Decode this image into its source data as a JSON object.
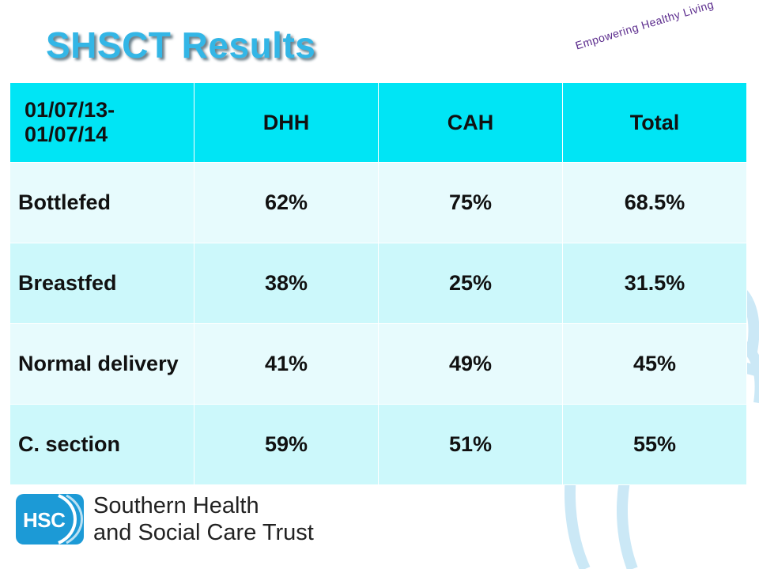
{
  "slide": {
    "title": "SHSCT Results",
    "tagline": "Empowering Healthy Living"
  },
  "table": {
    "headers": [
      "01/07/13-01/07/14",
      "DHH",
      "CAH",
      "Total"
    ],
    "rows": [
      [
        "Bottlefed",
        "62%",
        "75%",
        "68.5%"
      ],
      [
        "Breastfed",
        "38%",
        "25%",
        "31.5%"
      ],
      [
        "Normal delivery",
        "41%",
        "49%",
        "45%"
      ],
      [
        "C. section",
        "59%",
        "51%",
        "55%"
      ]
    ]
  },
  "footer": {
    "logo_text": "HSC",
    "org_line1": "Southern Health",
    "org_line2": "and Social Care Trust"
  },
  "colors": {
    "title": "#33b6e6",
    "header_bg": "#00e5f5",
    "row_bg": "#ccf8fb",
    "row_alt_bg": "#e7fbfd",
    "tagline": "#5a2a8c",
    "logo_bg": "#1c9ad6"
  }
}
